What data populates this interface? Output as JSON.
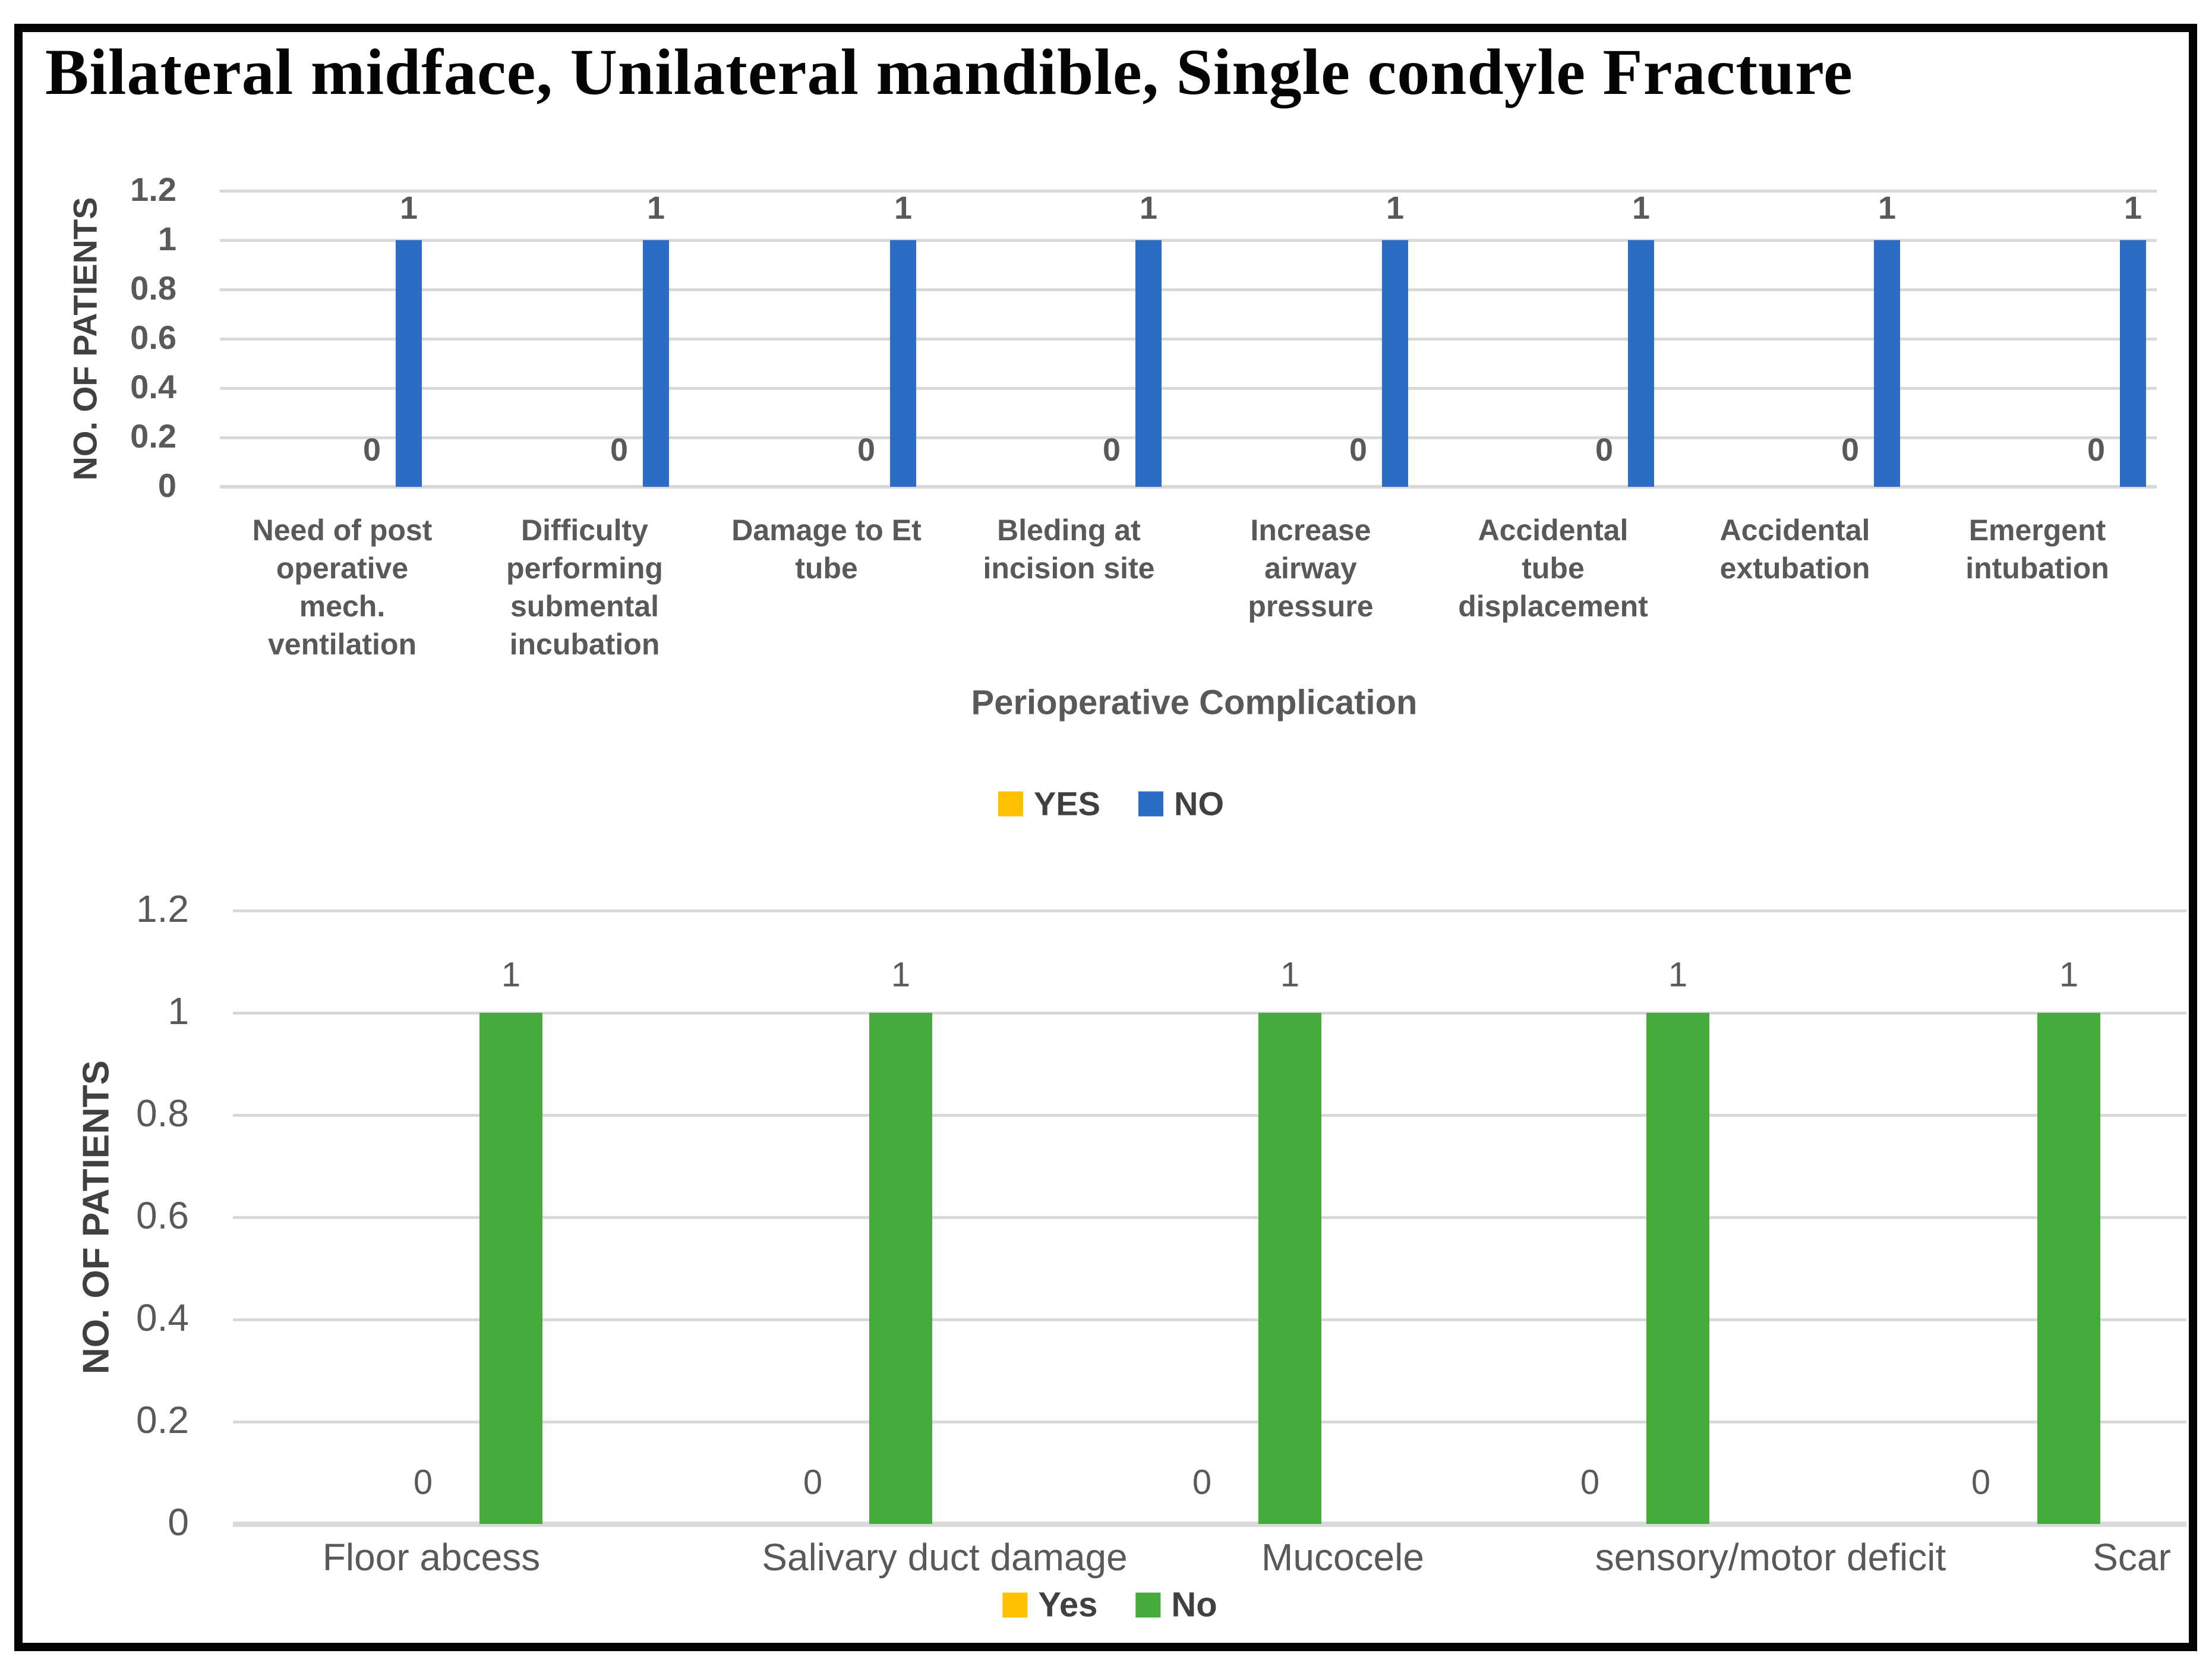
{
  "chart_data": [
    {
      "type": "bar",
      "title": "Bilateral midface, Unilateral mandible, Single condyle Fracture",
      "ylabel": "NO. OF PATIENTS",
      "xlabel": "Perioperative Complication",
      "ylim": [
        0,
        1.2
      ],
      "yticks": [
        0,
        0.2,
        0.4,
        0.6,
        0.8,
        1,
        1.2
      ],
      "grid": true,
      "legend_position": "bottom-center",
      "categories": [
        "Need of post\noperative\nmech.\nventilation",
        "Difficulty\nperforming\nsubmental\nincubation",
        "Damage to Et\ntube",
        "Bleding at\nincision site",
        "Increase\nairway\npressure",
        "Accidental\ntube\ndisplacement",
        "Accidental\nextubation",
        "Emergent\nintubation"
      ],
      "series": [
        {
          "name": "YES",
          "color": "#FFC000",
          "values": [
            0,
            0,
            0,
            0,
            0,
            0,
            0,
            0
          ]
        },
        {
          "name": "NO",
          "color": "#2B6CC4",
          "values": [
            1,
            1,
            1,
            1,
            1,
            1,
            1,
            1
          ]
        }
      ]
    },
    {
      "type": "bar",
      "title": "",
      "ylabel": "NO. OF PATIENTS",
      "xlabel": "",
      "ylim": [
        0,
        1.2
      ],
      "yticks": [
        0,
        0.2,
        0.4,
        0.6,
        0.8,
        1,
        1.2
      ],
      "grid": true,
      "legend_position": "bottom-center",
      "categories": [
        "Floor abcess",
        "Salivary duct damage",
        "Mucocele",
        "sensory/motor deficit",
        "Scar"
      ],
      "series": [
        {
          "name": "Yes",
          "color": "#FFC000",
          "values": [
            0,
            0,
            0,
            0,
            0
          ]
        },
        {
          "name": "No",
          "color": "#43AC3A",
          "values": [
            1,
            1,
            1,
            1,
            1
          ]
        }
      ]
    }
  ]
}
